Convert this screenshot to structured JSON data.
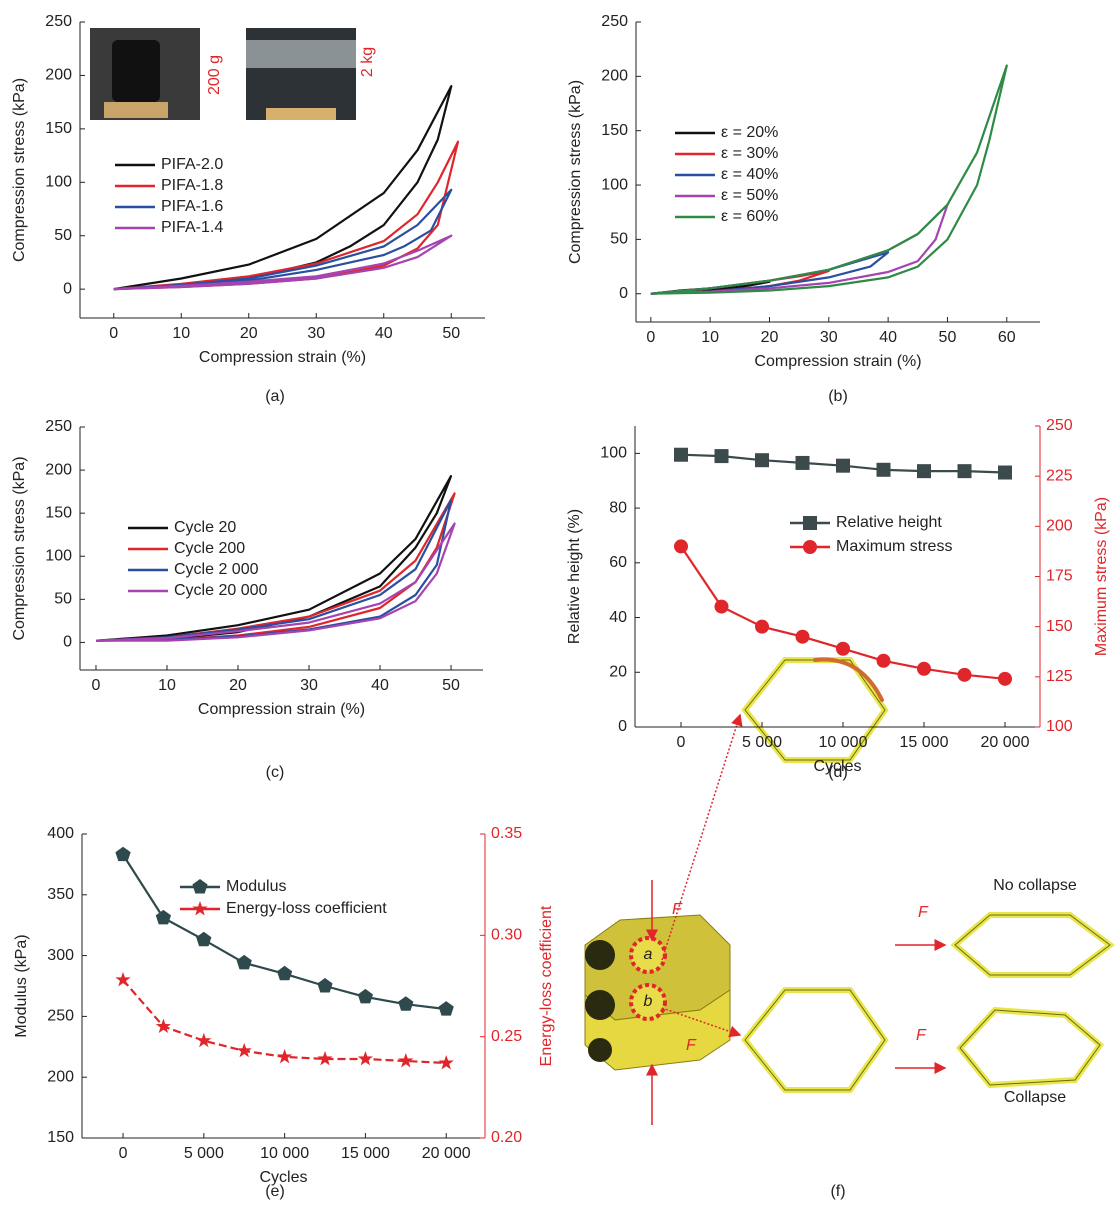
{
  "chart_data": [
    {
      "type": "line",
      "caption": "(a)",
      "xlabel": "Compression strain (%)",
      "ylabel": "Compression stress (kPa)",
      "xlim": [
        -5,
        55
      ],
      "ylim": [
        -27,
        250
      ],
      "xticks": [
        0,
        10,
        20,
        30,
        40,
        50
      ],
      "yticks": [
        0,
        50,
        100,
        150,
        200,
        250
      ],
      "annotations": [
        "200 g",
        "2 kg"
      ],
      "series": [
        {
          "name": "PIFA-2.0",
          "color": "#111111",
          "x": [
            0,
            10,
            20,
            30,
            40,
            45,
            50,
            48,
            45,
            40,
            35,
            30,
            20,
            10,
            0
          ],
          "values": [
            0,
            10,
            23,
            47,
            90,
            130,
            190,
            140,
            100,
            60,
            40,
            25,
            10,
            3,
            0
          ]
        },
        {
          "name": "PIFA-1.8",
          "color": "#e0262b",
          "x": [
            0,
            10,
            20,
            30,
            40,
            45,
            48,
            51,
            48,
            45,
            40,
            30,
            20,
            10,
            0
          ],
          "values": [
            0,
            5,
            12,
            24,
            45,
            70,
            100,
            138,
            60,
            38,
            22,
            10,
            5,
            2,
            0
          ]
        },
        {
          "name": "PIFA-1.6",
          "color": "#2a4fa0",
          "x": [
            0,
            10,
            20,
            30,
            40,
            45,
            50,
            47,
            43,
            40,
            30,
            20,
            10,
            0
          ],
          "values": [
            0,
            4,
            10,
            22,
            40,
            60,
            93,
            55,
            40,
            32,
            18,
            8,
            3,
            0
          ]
        },
        {
          "name": "PIFA-1.4",
          "color": "#a544b0",
          "x": [
            0,
            10,
            20,
            30,
            40,
            45,
            50,
            45,
            40,
            30,
            20,
            10,
            0
          ],
          "values": [
            0,
            3,
            7,
            12,
            24,
            36,
            50,
            30,
            20,
            10,
            5,
            2,
            0
          ]
        }
      ]
    },
    {
      "type": "line",
      "caption": "(b)",
      "xlabel": "Compression strain (%)",
      "ylabel": "Compression stress (kPa)",
      "xlim": [
        -2.5,
        65.6
      ],
      "ylim": [
        -26,
        250
      ],
      "xticks": [
        0,
        10,
        20,
        30,
        40,
        50,
        60
      ],
      "yticks": [
        0,
        50,
        100,
        150,
        200,
        250
      ],
      "series": [
        {
          "name": "ε = 20%",
          "color": "#111111",
          "x": [
            0,
            5,
            10,
            15,
            20,
            15,
            10,
            5,
            0
          ],
          "values": [
            0,
            3,
            5,
            8,
            11,
            6,
            3,
            1,
            0
          ]
        },
        {
          "name": "ε = 30%",
          "color": "#e0262b",
          "x": [
            0,
            10,
            20,
            25,
            30,
            25,
            20,
            10,
            0
          ],
          "values": [
            0,
            5,
            12,
            16,
            21,
            12,
            7,
            2,
            0
          ]
        },
        {
          "name": "ε = 40%",
          "color": "#2a4fa0",
          "x": [
            0,
            10,
            20,
            30,
            35,
            40,
            37,
            30,
            20,
            10,
            0
          ],
          "values": [
            0,
            5,
            12,
            22,
            30,
            38,
            25,
            15,
            7,
            2,
            0
          ]
        },
        {
          "name": "ε = 50%",
          "color": "#a544b0",
          "x": [
            0,
            10,
            20,
            30,
            40,
            45,
            50,
            48,
            45,
            40,
            30,
            20,
            10,
            0
          ],
          "values": [
            0,
            5,
            12,
            22,
            40,
            55,
            82,
            50,
            30,
            20,
            10,
            5,
            2,
            0
          ]
        },
        {
          "name": "ε = 60%",
          "color": "#2e8b45",
          "x": [
            0,
            10,
            20,
            30,
            40,
            45,
            50,
            55,
            60,
            57,
            55,
            50,
            45,
            40,
            30,
            20,
            10,
            0
          ],
          "values": [
            0,
            5,
            12,
            22,
            40,
            55,
            82,
            130,
            210,
            140,
            100,
            50,
            25,
            15,
            7,
            3,
            1,
            0
          ]
        }
      ]
    },
    {
      "type": "line",
      "caption": "(c)",
      "xlabel": "Compression strain (%)",
      "ylabel": "Compression stress (kPa)",
      "xlim": [
        -2.25,
        54.5
      ],
      "ylim": [
        -32,
        250
      ],
      "xticks": [
        0,
        10,
        20,
        30,
        40,
        50
      ],
      "yticks": [
        0,
        50,
        100,
        150,
        200,
        250
      ],
      "series": [
        {
          "name": "Cycle 20",
          "color": "#111111",
          "x": [
            0,
            10,
            20,
            30,
            40,
            45,
            50,
            48,
            45,
            40,
            30,
            20,
            10,
            0
          ],
          "values": [
            2,
            8,
            20,
            38,
            80,
            120,
            193,
            150,
            110,
            65,
            30,
            12,
            4,
            2
          ]
        },
        {
          "name": "Cycle 200",
          "color": "#e0262b",
          "x": [
            0,
            10,
            20,
            30,
            40,
            45,
            50.5,
            48,
            45,
            40,
            30,
            20,
            10,
            0
          ],
          "values": [
            2,
            6,
            16,
            30,
            60,
            95,
            173,
            110,
            70,
            40,
            18,
            8,
            3,
            2
          ]
        },
        {
          "name": "Cycle 2 000",
          "color": "#2a4fa0",
          "x": [
            0,
            10,
            20,
            30,
            40,
            45,
            50,
            48,
            45,
            40,
            30,
            20,
            10,
            0
          ],
          "values": [
            2,
            6,
            15,
            27,
            55,
            85,
            165,
            90,
            55,
            30,
            15,
            7,
            3,
            2
          ]
        },
        {
          "name": "Cycle 20 000",
          "color": "#a544b0",
          "x": [
            0,
            10,
            20,
            30,
            40,
            45,
            50.5,
            48,
            45,
            40,
            30,
            20,
            10,
            0
          ],
          "values": [
            2,
            5,
            13,
            23,
            45,
            70,
            138,
            80,
            48,
            28,
            14,
            6,
            2,
            2
          ]
        }
      ]
    },
    {
      "type": "line",
      "caption": "(d)",
      "xlabel": "Cycles",
      "ylabel": "Relative height (%)",
      "y2label": "Maximum stress (kPa)",
      "xlim": [
        -2840,
        22160
      ],
      "ylim": [
        0,
        110
      ],
      "y2lim": [
        100,
        250
      ],
      "xticks": [
        0,
        {
          "value": 5000,
          "label": "5 000"
        },
        {
          "value": 10000,
          "label": "10 000"
        },
        {
          "value": 15000,
          "label": "15 000"
        },
        {
          "value": 20000,
          "label": "20 000"
        }
      ],
      "yticks": [
        0,
        20,
        40,
        60,
        80,
        100
      ],
      "y2ticks": [
        100,
        125,
        150,
        175,
        200,
        225,
        250
      ],
      "x": [
        0,
        2500,
        5000,
        7500,
        10000,
        12500,
        15000,
        17500,
        20000
      ],
      "series": [
        {
          "name": "Relative height",
          "color": "#3c4a4c",
          "marker": "square",
          "values": [
            99.5,
            99,
            97.5,
            96.5,
            95.5,
            94,
            93.5,
            93.5,
            93
          ]
        },
        {
          "name": "Maximum stress",
          "color": "#e0262b",
          "marker": "circle",
          "axis": "y2",
          "values": [
            190,
            160,
            150,
            145,
            139,
            133,
            129,
            126,
            124
          ]
        }
      ]
    },
    {
      "type": "line",
      "caption": "(e)",
      "xlabel": "Cycles",
      "ylabel": "Modulus (kPa)",
      "y2label": "Energy-loss coefficient",
      "xlim": [
        -2540,
        22400
      ],
      "ylim": [
        150,
        400
      ],
      "y2lim": [
        0.2,
        0.35
      ],
      "xticks": [
        0,
        {
          "value": 5000,
          "label": "5 000"
        },
        {
          "value": 10000,
          "label": "10 000"
        },
        {
          "value": 15000,
          "label": "15 000"
        },
        {
          "value": 20000,
          "label": "20 000"
        }
      ],
      "yticks": [
        150,
        200,
        250,
        300,
        350,
        400
      ],
      "y2ticks": [
        {
          "value": 0.2,
          "label": "0.20"
        },
        0.25,
        {
          "value": 0.3,
          "label": "0.30"
        },
        0.35
      ],
      "x": [
        0,
        2500,
        5000,
        7500,
        10000,
        12500,
        15000,
        17500,
        20000
      ],
      "series": [
        {
          "name": "Modulus",
          "color": "#2f4a4c",
          "marker": "pentagon",
          "values": [
            383,
            331,
            313,
            294,
            285,
            275,
            266,
            260,
            256
          ]
        },
        {
          "name": "Energy-loss coefficient",
          "color": "#e0262b",
          "marker": "star",
          "axis": "y2",
          "dashed": true,
          "values": [
            0.278,
            0.255,
            0.248,
            0.243,
            0.24,
            0.239,
            0.239,
            0.238,
            0.237
          ]
        }
      ]
    }
  ],
  "diagram": {
    "caption": "(f)",
    "force_labels": [
      "F",
      "F",
      "F",
      "F"
    ],
    "cell_labels": [
      "a",
      "b"
    ],
    "outcomes": [
      "No collapse",
      "Collapse"
    ]
  }
}
